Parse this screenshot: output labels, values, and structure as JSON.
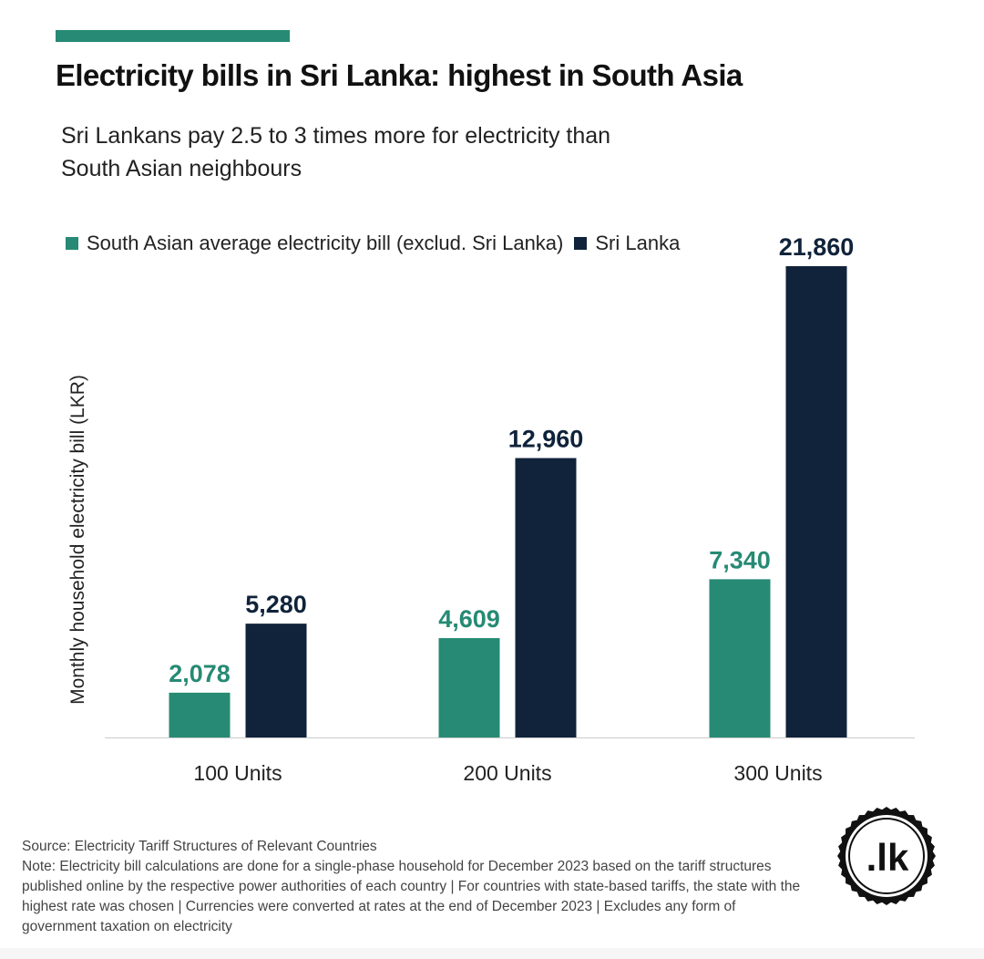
{
  "header": {
    "title": "Electricity bills in Sri Lanka: highest in South Asia",
    "subtitle": "Sri Lankans pay 2.5 to 3 times more for electricity than South Asian neighbours"
  },
  "colors": {
    "accent": "#268a74",
    "south_asia": "#268a74",
    "sri_lanka": "#10233a"
  },
  "chart_data": {
    "type": "bar",
    "title": "Electricity bills in Sri Lanka: highest in South Asia",
    "subtitle": "Sri Lankans pay 2.5 to 3 times more for electricity than South Asian neighbours",
    "xlabel": "",
    "ylabel": "Monthly household electricity bill (LKR)",
    "categories": [
      "100 Units",
      "200 Units",
      "300 Units"
    ],
    "series": [
      {
        "name": "South Asian average electricity bill (exclud. Sri Lanka)",
        "values": [
          2078,
          4609,
          7340
        ],
        "labels": [
          "2,078",
          "4,609",
          "7,340"
        ],
        "color": "#268a74"
      },
      {
        "name": "Sri Lanka",
        "values": [
          5280,
          12960,
          21860
        ],
        "labels": [
          "5,280",
          "12,960",
          "21,860"
        ],
        "color": "#10233a"
      }
    ],
    "ylim": [
      0,
      21860
    ],
    "grid": false,
    "legend_position": "top-left"
  },
  "footer": {
    "source": "Source: Electricity Tariff Structures of Relevant Countries",
    "note": "Note: Electricity bill calculations are done for a single-phase household for December 2023 based on the tariff structures published online by the respective power authorities of each country | For countries with state-based tariffs, the state with the highest rate was chosen | Currencies were converted at rates at the end of December 2023 | Excludes any form of government taxation on electricity"
  },
  "logo": {
    "text": ".lk",
    "icon": "lk-seal-logo"
  }
}
